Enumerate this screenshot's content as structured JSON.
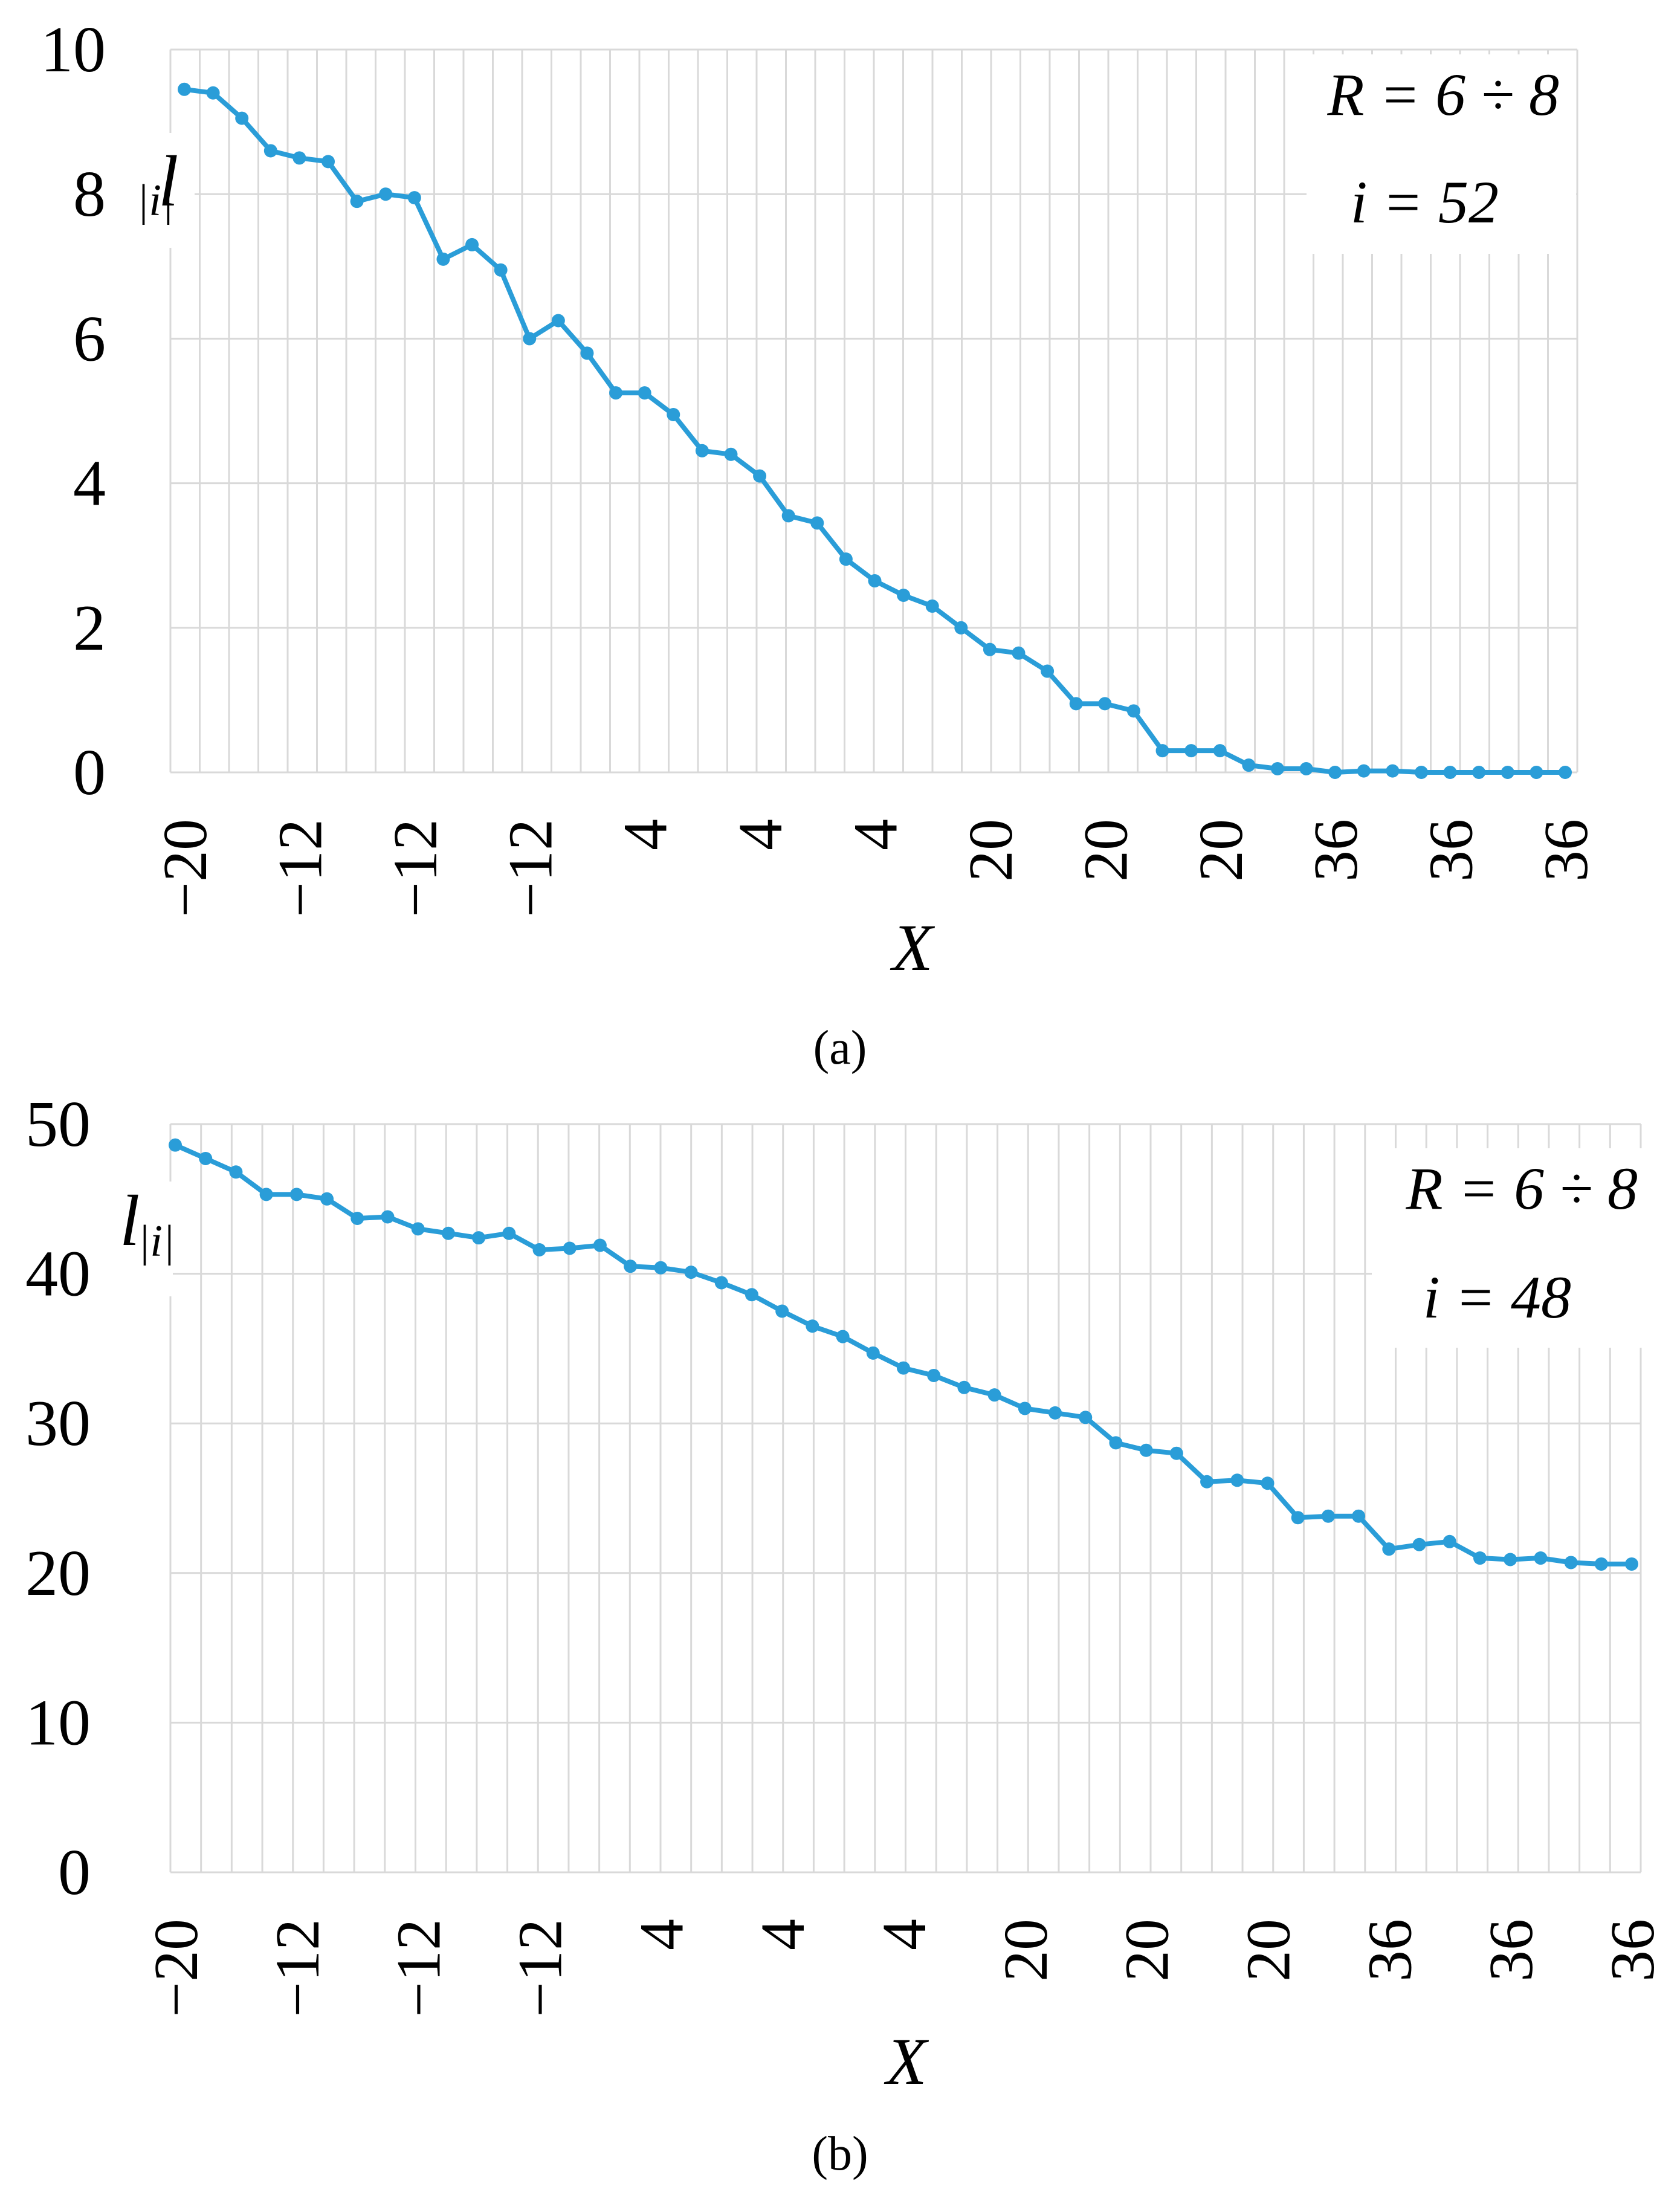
{
  "chart_data": [
    {
      "type": "line",
      "panel_label": "a",
      "ylim": [
        0,
        10
      ],
      "y_ticks": [
        "0",
        "2",
        "4",
        "6",
        "8",
        "10"
      ],
      "grid": true,
      "xlabel": "X",
      "ylabel": "l",
      "ylabel_sub": "|i|",
      "annotation": {
        "line1": "R = 6 ÷ 8",
        "line2": "i = 52"
      },
      "x_tick_labels": [
        "−20",
        "−12",
        "−12",
        "−12",
        "4",
        "4",
        "4",
        "20",
        "20",
        "20",
        "36",
        "36",
        "36"
      ],
      "series": [
        {
          "name": "l|i|",
          "color": "#2a9dd8",
          "values": [
            9.45,
            9.4,
            9.05,
            8.6,
            8.5,
            8.45,
            7.9,
            8.0,
            7.95,
            7.1,
            7.3,
            6.95,
            6.0,
            6.25,
            5.8,
            5.25,
            5.25,
            4.95,
            4.45,
            4.4,
            4.1,
            3.55,
            3.45,
            2.95,
            2.65,
            2.45,
            2.3,
            2.0,
            1.7,
            1.65,
            1.4,
            0.95,
            0.95,
            0.85,
            0.3,
            0.3,
            0.3,
            0.1,
            0.05,
            0.05,
            0.0,
            0.02,
            0.02,
            0.0,
            0.0,
            0.0,
            0.0,
            0.0,
            0.0
          ]
        }
      ]
    },
    {
      "type": "line",
      "panel_label": "b",
      "ylim": [
        0,
        50
      ],
      "y_ticks": [
        "0",
        "10",
        "20",
        "30",
        "40",
        "50"
      ],
      "grid": true,
      "xlabel": "X",
      "ylabel": "l",
      "ylabel_sub": "|i|",
      "annotation": {
        "line1": "R = 6 ÷ 8",
        "line2": "i = 48"
      },
      "x_tick_labels": [
        "−20",
        "−12",
        "−12",
        "−12",
        "4",
        "4",
        "4",
        "20",
        "20",
        "20",
        "36",
        "36",
        "36"
      ],
      "series": [
        {
          "name": "l|i|",
          "color": "#2a9dd8",
          "values": [
            48.6,
            47.7,
            46.8,
            45.3,
            45.3,
            45.0,
            43.7,
            43.8,
            43.0,
            42.7,
            42.4,
            42.7,
            41.6,
            41.7,
            41.9,
            40.5,
            40.4,
            40.1,
            39.4,
            38.6,
            37.5,
            36.5,
            35.8,
            34.7,
            33.7,
            33.2,
            32.4,
            31.9,
            31.0,
            30.7,
            30.4,
            28.7,
            28.2,
            28.0,
            26.1,
            26.2,
            26.0,
            23.7,
            23.8,
            23.8,
            21.6,
            21.9,
            22.1,
            21.0,
            20.9,
            21.0,
            20.7,
            20.6,
            20.6
          ]
        }
      ]
    }
  ],
  "captions": {
    "a": "(a)",
    "b": "(b)"
  }
}
